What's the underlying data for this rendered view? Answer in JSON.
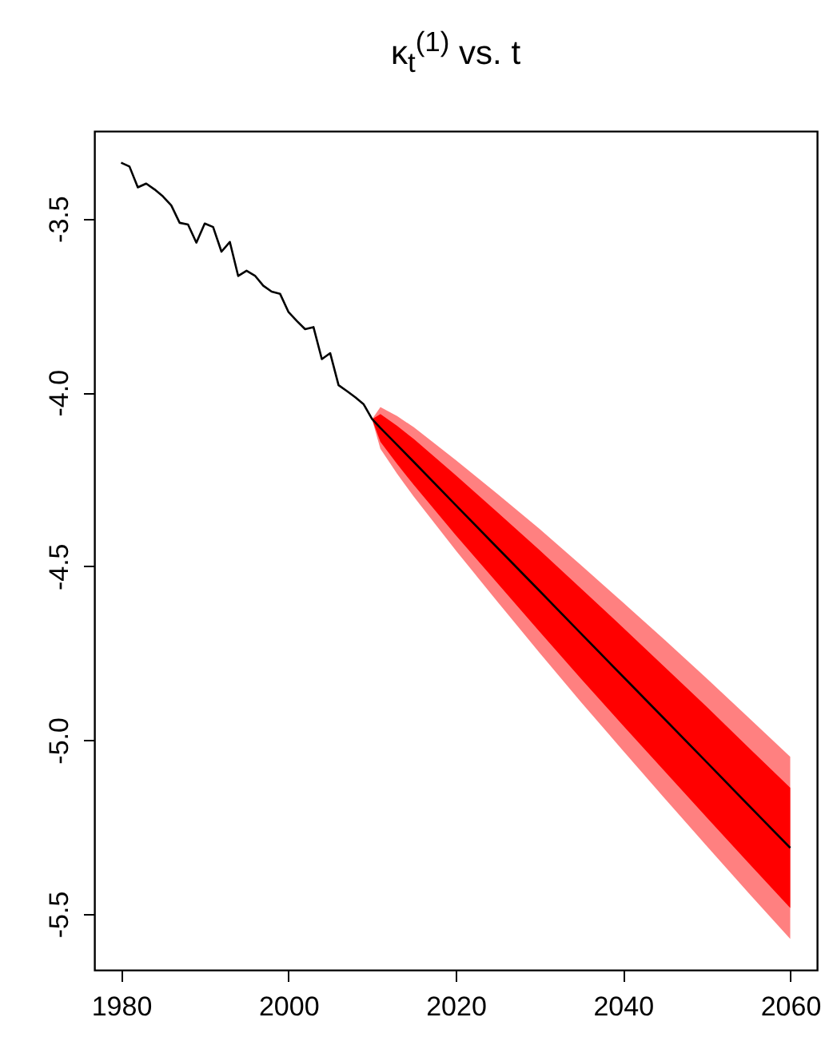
{
  "chart_data": {
    "type": "line",
    "title": "κ$_{t}$$^{(1)}$ vs. t",
    "xlim": [
      1976.8,
      2063.2
    ],
    "ylim": [
      -5.661,
      -3.248
    ],
    "xticks": [
      1980,
      2000,
      2020,
      2040,
      2060
    ],
    "yticks": [
      {
        "value": -3.5,
        "label": "-3.5"
      },
      {
        "value": -4,
        "label": "-4.0"
      },
      {
        "value": -4.5,
        "label": "-4.5"
      },
      {
        "value": -5,
        "label": "-5.0"
      },
      {
        "value": -5.5,
        "label": "-5.5"
      }
    ],
    "grid": false,
    "series": [
      {
        "color": "#ff8080",
        "x": [
          2010,
          2011,
          2013,
          2015,
          2020,
          2025,
          2030,
          2035,
          2040,
          2045,
          2050,
          2055,
          2060
        ],
        "values": [
          null,
          null,
          null,
          null,
          null,
          null,
          null,
          null,
          null,
          null,
          null,
          null,
          null
        ],
        "lower": [
          -4.077,
          -4.162,
          -4.234,
          -4.3,
          -4.454,
          -4.602,
          -4.748,
          -4.891,
          -5.03,
          -5.168,
          -5.304,
          -5.439,
          -5.572
        ],
        "upper": [
          -4.077,
          -4.042,
          -4.068,
          -4.1,
          -4.194,
          -4.292,
          -4.392,
          -4.497,
          -4.604,
          -4.712,
          -4.822,
          -4.935,
          -5.048
        ]
      },
      {
        "color": "#ff0000",
        "x": [
          2010,
          2011,
          2013,
          2015,
          2020,
          2025,
          2030,
          2035,
          2040,
          2045,
          2050,
          2055,
          2060
        ],
        "values": [
          null,
          null,
          null,
          null,
          null,
          null,
          null,
          null,
          null,
          null,
          null,
          null,
          null
        ],
        "lower": [
          -4.077,
          -4.142,
          -4.206,
          -4.266,
          -4.41,
          -4.549,
          -4.687,
          -4.824,
          -4.958,
          -5.09,
          -5.222,
          -5.353,
          -5.483
        ],
        "upper": [
          -4.077,
          -4.062,
          -4.096,
          -4.134,
          -4.238,
          -4.345,
          -4.453,
          -4.564,
          -4.676,
          -4.79,
          -4.904,
          -5.021,
          -5.137
        ]
      },
      {
        "color": "#000000",
        "x": [
          1980,
          1981,
          1982,
          1983,
          1984,
          1985,
          1986,
          1987,
          1988,
          1989,
          1990,
          1991,
          1992,
          1993,
          1994,
          1995,
          1996,
          1997,
          1998,
          1999,
          2000,
          2001,
          2002,
          2003,
          2004,
          2005,
          2006,
          2007,
          2008,
          2009,
          2010,
          2011,
          2013,
          2015,
          2020,
          2025,
          2030,
          2035,
          2040,
          2045,
          2050,
          2055,
          2060
        ],
        "values": [
          -3.339,
          -3.35,
          -3.41,
          -3.399,
          -3.416,
          -3.436,
          -3.462,
          -3.512,
          -3.517,
          -3.569,
          -3.514,
          -3.524,
          -3.595,
          -3.567,
          -3.665,
          -3.65,
          -3.664,
          -3.693,
          -3.71,
          -3.716,
          -3.768,
          -3.794,
          -3.818,
          -3.812,
          -3.904,
          -3.887,
          -3.979,
          -3.996,
          -4.014,
          -4.034,
          -4.076,
          -4.102,
          -4.151,
          -4.2,
          -4.324,
          -4.447,
          -4.57,
          -4.694,
          -4.817,
          -4.94,
          -5.063,
          -5.187,
          -5.31
        ]
      }
    ]
  }
}
